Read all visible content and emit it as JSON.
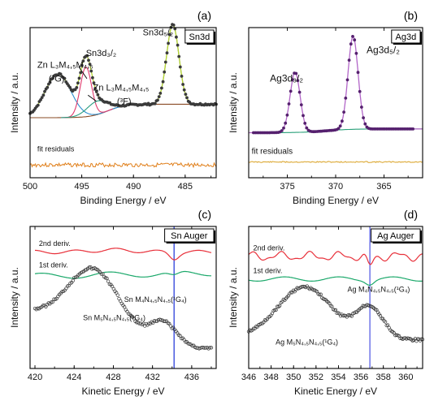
{
  "chart_data": [
    {
      "type": "line",
      "panel": "(a)",
      "legend": "Sn3d",
      "xlabel": "Binding Energy / eV",
      "ylabel": "Intensity / a.u.",
      "xlim": [
        500,
        482
      ],
      "ylim": [
        0,
        1
      ],
      "xticks": [
        500,
        495,
        490,
        485
      ],
      "xtick_labels": [
        "500",
        "495",
        "490",
        "485"
      ],
      "labels": {
        "zn1g": "Zn L₃M₄,₅M₄,₅",
        "zn1g_term": "(¹G)",
        "sn32": "Sn3d₃/₂",
        "sn52": "Sn3d₅/₂",
        "zn3f": "Zn L₃M₄,₅M₄,₅",
        "zn3f_term": "(³F)",
        "residuals": "fit residuals"
      },
      "series": [
        {
          "role": "data points",
          "color": "#3a3a3a",
          "x": [
            499.5,
            499,
            498.5,
            498,
            497.5,
            497,
            496.5,
            496,
            495.5,
            495.2,
            494.8,
            494.5,
            494.2,
            493.8,
            493.5,
            493,
            492.5,
            492,
            491.5,
            491,
            490.5,
            490,
            489.5,
            489,
            488.5,
            488,
            487.5,
            487,
            486.6,
            486.3,
            486,
            485.6,
            485.3,
            485,
            484.5,
            484,
            483.5,
            483,
            482.5
          ],
          "y": [
            0.52,
            0.53,
            0.55,
            0.62,
            0.72,
            0.76,
            0.73,
            0.65,
            0.62,
            0.7,
            0.74,
            0.56,
            0.48,
            0.5,
            0.53,
            0.47,
            0.42,
            0.41,
            0.4,
            0.4,
            0.4,
            0.41,
            0.42,
            0.44,
            0.47,
            0.53,
            0.65,
            0.83,
            0.93,
            0.94,
            0.9,
            0.76,
            0.6,
            0.49,
            0.43,
            0.41,
            0.4,
            0.4,
            0.39
          ]
        },
        {
          "role": "envelope fit",
          "color": "#b5d335"
        },
        {
          "role": "Zn (1G) component",
          "color": "#2e8fd0"
        },
        {
          "role": "Sn3d3/2 component",
          "color": "#e0386b"
        },
        {
          "role": "Zn (3F) component",
          "color": "#2a9d80"
        },
        {
          "role": "Sn3d5/2 component",
          "color": "#6a8f1f"
        },
        {
          "role": "background",
          "color": "#8a4b26"
        },
        {
          "role": "fit residuals",
          "color": "#e07f1a"
        }
      ]
    },
    {
      "type": "line",
      "panel": "(b)",
      "legend": "Ag3d",
      "xlabel": "Binding Energy / eV",
      "ylabel": "Intensity / a.u.",
      "xlim": [
        379,
        361
      ],
      "ylim": [
        0,
        1
      ],
      "xticks": [
        375,
        370,
        365
      ],
      "xtick_labels": [
        "375",
        "370",
        "365"
      ],
      "labels": {
        "ag32": "Ag3d₃/₂",
        "ag52": "Ag3d₅/₂",
        "residuals": "fit residuals"
      },
      "series": [
        {
          "role": "data points",
          "color": "#55206e",
          "x": [
            379,
            378,
            377,
            376,
            375.5,
            375,
            374.6,
            374.3,
            374,
            373.7,
            373.4,
            373,
            372.5,
            372,
            371,
            370,
            369.5,
            369,
            368.6,
            368.3,
            368,
            367.7,
            367.4,
            367,
            366.5,
            366,
            365,
            364,
            363,
            362
          ],
          "y": [
            0.3,
            0.3,
            0.31,
            0.33,
            0.38,
            0.5,
            0.62,
            0.68,
            0.7,
            0.62,
            0.48,
            0.37,
            0.33,
            0.32,
            0.32,
            0.34,
            0.39,
            0.56,
            0.8,
            0.9,
            0.92,
            0.86,
            0.67,
            0.46,
            0.36,
            0.33,
            0.31,
            0.3,
            0.3,
            0.3
          ]
        },
        {
          "role": "fit",
          "color": "#b266c8"
        },
        {
          "role": "background",
          "color": "#2aa07a"
        },
        {
          "role": "fit residuals",
          "color": "#d9a020"
        }
      ]
    },
    {
      "type": "line",
      "panel": "(c)",
      "legend": "Sn Auger",
      "xlabel": "Kinetic Energy / eV",
      "ylabel": "Intensity / a.u.",
      "xlim": [
        419.5,
        438.5
      ],
      "ylim": [
        0,
        1
      ],
      "xticks": [
        420,
        424,
        428,
        432,
        436
      ],
      "xtick_labels": [
        "420",
        "424",
        "428",
        "432",
        "436"
      ],
      "marker_line_x": 434.2,
      "labels": {
        "deriv2": "2nd deriv.",
        "deriv1": "1st deriv.",
        "sn5": "Sn M₅N₄,₅N₄,₅(¹G₄)",
        "sn4": "Sn M₄N₄,₅N₄,₅(¹G₄)"
      },
      "series": [
        {
          "role": "2nd deriv.",
          "color": "#e8303a"
        },
        {
          "role": "1st deriv.",
          "color": "#1aa86a"
        },
        {
          "role": "Auger data",
          "color": "#333333",
          "x": [
            420,
            421,
            422,
            423,
            424,
            425,
            425.5,
            426,
            426.5,
            427,
            428,
            429,
            430,
            431,
            432,
            433,
            433.5,
            434,
            434.5,
            435,
            436,
            437,
            438
          ],
          "y": [
            0.44,
            0.47,
            0.52,
            0.58,
            0.7,
            0.76,
            0.78,
            0.77,
            0.74,
            0.68,
            0.55,
            0.42,
            0.34,
            0.32,
            0.36,
            0.41,
            0.42,
            0.4,
            0.35,
            0.28,
            0.2,
            0.15,
            0.14
          ]
        }
      ]
    },
    {
      "type": "line",
      "panel": "(d)",
      "legend": "Ag Auger",
      "xlabel": "Kinetic Energy / eV",
      "ylabel": "Intensity / a.u.",
      "xlim": [
        346,
        361.5
      ],
      "ylim": [
        0,
        1
      ],
      "xticks": [
        346,
        348,
        350,
        352,
        354,
        356,
        358,
        360
      ],
      "xtick_labels": [
        "346",
        "348",
        "350",
        "352",
        "354",
        "356",
        "358",
        "360"
      ],
      "marker_line_x": 356.8,
      "labels": {
        "deriv2": "2nd deriv.",
        "deriv1": "1st deriv.",
        "ag4": "Ag M₄N₄,₅N₄,₅(¹G₄)",
        "ag5": "Ag M₅N₄,₅N₄,₅(¹G₄)"
      },
      "series": [
        {
          "role": "2nd deriv.",
          "color": "#e8303a"
        },
        {
          "role": "1st deriv.",
          "color": "#1aa86a"
        },
        {
          "role": "Auger data",
          "color": "#333333",
          "x": [
            346,
            347,
            348,
            349,
            350,
            350.5,
            351,
            351.5,
            352,
            353,
            354,
            355,
            356,
            356.5,
            357,
            357.5,
            358,
            359,
            360,
            361
          ],
          "y": [
            0.44,
            0.48,
            0.52,
            0.6,
            0.72,
            0.74,
            0.74,
            0.72,
            0.66,
            0.55,
            0.46,
            0.44,
            0.52,
            0.58,
            0.55,
            0.47,
            0.39,
            0.3,
            0.24,
            0.22
          ]
        }
      ]
    }
  ]
}
